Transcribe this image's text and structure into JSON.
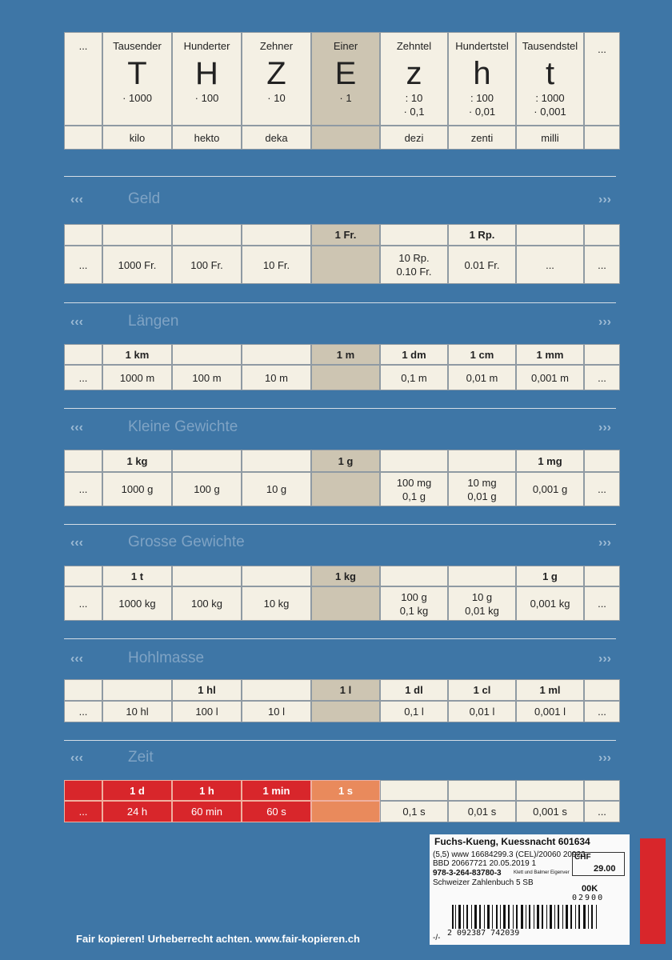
{
  "header": {
    "left_ellipsis": "...",
    "right_ellipsis": "...",
    "columns": [
      {
        "name": "Tausender",
        "letter": "T",
        "factor": [
          "· 1000"
        ],
        "prefix": "kilo"
      },
      {
        "name": "Hunderter",
        "letter": "H",
        "factor": [
          "· 100"
        ],
        "prefix": "hekto"
      },
      {
        "name": "Zehner",
        "letter": "Z",
        "factor": [
          "· 10"
        ],
        "prefix": "deka"
      },
      {
        "name": "Einer",
        "letter": "E",
        "factor": [
          "· 1"
        ]
      },
      {
        "name": "Zehntel",
        "letter": "z",
        "factor": [
          ": 10",
          "· 0,1"
        ],
        "prefix": "dezi"
      },
      {
        "name": "Hundertstel",
        "letter": "h",
        "factor": [
          ": 100",
          "· 0,01"
        ],
        "prefix": "zenti"
      },
      {
        "name": "Tausendstel",
        "letter": "t",
        "factor": [
          ": 1000",
          "· 0,001"
        ],
        "prefix": "milli"
      }
    ]
  },
  "sections": [
    {
      "title": "Geld",
      "top": [
        null,
        null,
        null,
        null,
        "1 Fr.",
        null,
        "1 Rp.",
        null,
        null
      ],
      "bottom": [
        "...",
        "1000 Fr.",
        "100 Fr.",
        "10 Fr.",
        null,
        [
          "10 Rp.",
          "0.10 Fr."
        ],
        "0.01 Fr.",
        "...",
        "..."
      ]
    },
    {
      "title": "Längen",
      "top": [
        null,
        "1 km",
        null,
        null,
        "1 m",
        "1 dm",
        "1 cm",
        "1 mm",
        null
      ],
      "bottom": [
        "...",
        "1000 m",
        "100 m",
        "10 m",
        null,
        "0,1 m",
        "0,01 m",
        "0,001 m",
        "..."
      ]
    },
    {
      "title": "Kleine Gewichte",
      "top": [
        null,
        "1 kg",
        null,
        null,
        "1 g",
        null,
        null,
        "1 mg",
        null
      ],
      "bottom": [
        "...",
        "1000 g",
        "100 g",
        "10 g",
        null,
        [
          "100 mg",
          "0,1 g"
        ],
        [
          "10 mg",
          "0,01 g"
        ],
        "0,001 g",
        "..."
      ]
    },
    {
      "title": "Grosse Gewichte",
      "top": [
        null,
        "1 t",
        null,
        null,
        "1 kg",
        null,
        null,
        "1 g",
        null
      ],
      "bottom": [
        "...",
        "1000 kg",
        "100 kg",
        "10 kg",
        null,
        [
          "100 g",
          "0,1 kg"
        ],
        [
          "10 g",
          "0,01 kg"
        ],
        "0,001 kg",
        "..."
      ]
    },
    {
      "title": "Hohlmasse",
      "top": [
        null,
        null,
        "1 hl",
        null,
        "1 l",
        "1 dl",
        "1 cl",
        "1 ml",
        null
      ],
      "bottom": [
        "...",
        "10 hl",
        "100 l",
        "10 l",
        null,
        "0,1 l",
        "0,01 l",
        "0,001 l",
        "..."
      ]
    },
    {
      "title": "Zeit",
      "top": [
        null,
        "1 d",
        "1 h",
        "1 min",
        "1 s",
        null,
        null,
        null,
        null
      ],
      "bottom": [
        "...",
        "24 h",
        "60 min",
        "60 s",
        null,
        "0,1 s",
        "0,01 s",
        "0,001 s",
        "..."
      ]
    }
  ],
  "sticker": {
    "store": "Fuchs-Kueng, Kuessnacht 601634",
    "line1": "(5,5) www 16684299.3 (CEL)/20060 20923",
    "line2": "BBD 20667721 20.05.2019 1",
    "isbn": "978-3-264-83780-3",
    "publisher": "Klett und Balmer Eigenver",
    "book": "Schweizer Zahlenbuch 5 SB",
    "currency": "CHF",
    "price": "29.00",
    "code": "00K",
    "code2": "02900",
    "barcode": "2 092387 742039",
    "foot": "-/-"
  },
  "footer": "Fair kopieren! Urheberrecht achten. www.fair-kopieren.ch"
}
